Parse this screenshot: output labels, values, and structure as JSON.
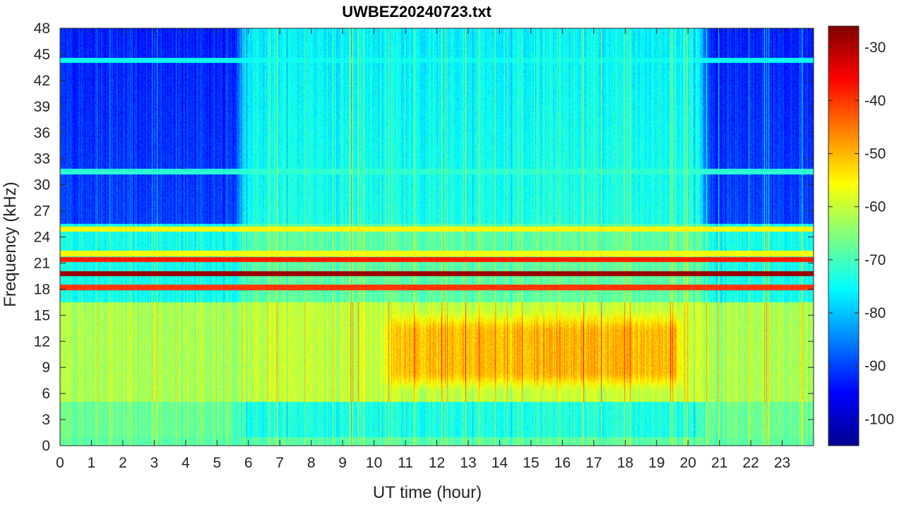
{
  "chart_data": {
    "type": "heatmap",
    "title": "UWBEZ20240723.txt",
    "xlabel": "UT time (hour)",
    "ylabel": "Frequency (kHz)",
    "xlim": [
      0,
      24
    ],
    "ylim": [
      0,
      48
    ],
    "x_ticks": [
      0,
      1,
      2,
      3,
      4,
      5,
      6,
      7,
      8,
      9,
      10,
      11,
      12,
      13,
      14,
      15,
      16,
      17,
      18,
      19,
      20,
      21,
      22,
      23
    ],
    "y_ticks": [
      0,
      3,
      6,
      9,
      12,
      15,
      18,
      21,
      24,
      27,
      30,
      33,
      36,
      39,
      42,
      45,
      48
    ],
    "colormap": "jet",
    "colorbar": {
      "clim": [
        -105,
        -26
      ],
      "ticks": [
        -100,
        -90,
        -80,
        -70,
        -60,
        -50,
        -40,
        -30
      ]
    },
    "features": {
      "day_start_hour": 5.8,
      "day_end_hour": 20.5,
      "evening_enhancement_hours": [
        10,
        20
      ],
      "evening_enhancement_freq_khz": [
        6,
        16
      ],
      "narrowband_transmitters_khz": [
        {
          "freq": 19.8,
          "level": -28
        },
        {
          "freq": 21.4,
          "level": -38
        },
        {
          "freq": 18.2,
          "level": -40
        },
        {
          "freq": 24.9,
          "level": -55
        },
        {
          "freq": 22.1,
          "level": -56
        },
        {
          "freq": 31.5,
          "level": -72
        },
        {
          "freq": 44.3,
          "level": -75
        }
      ]
    }
  }
}
